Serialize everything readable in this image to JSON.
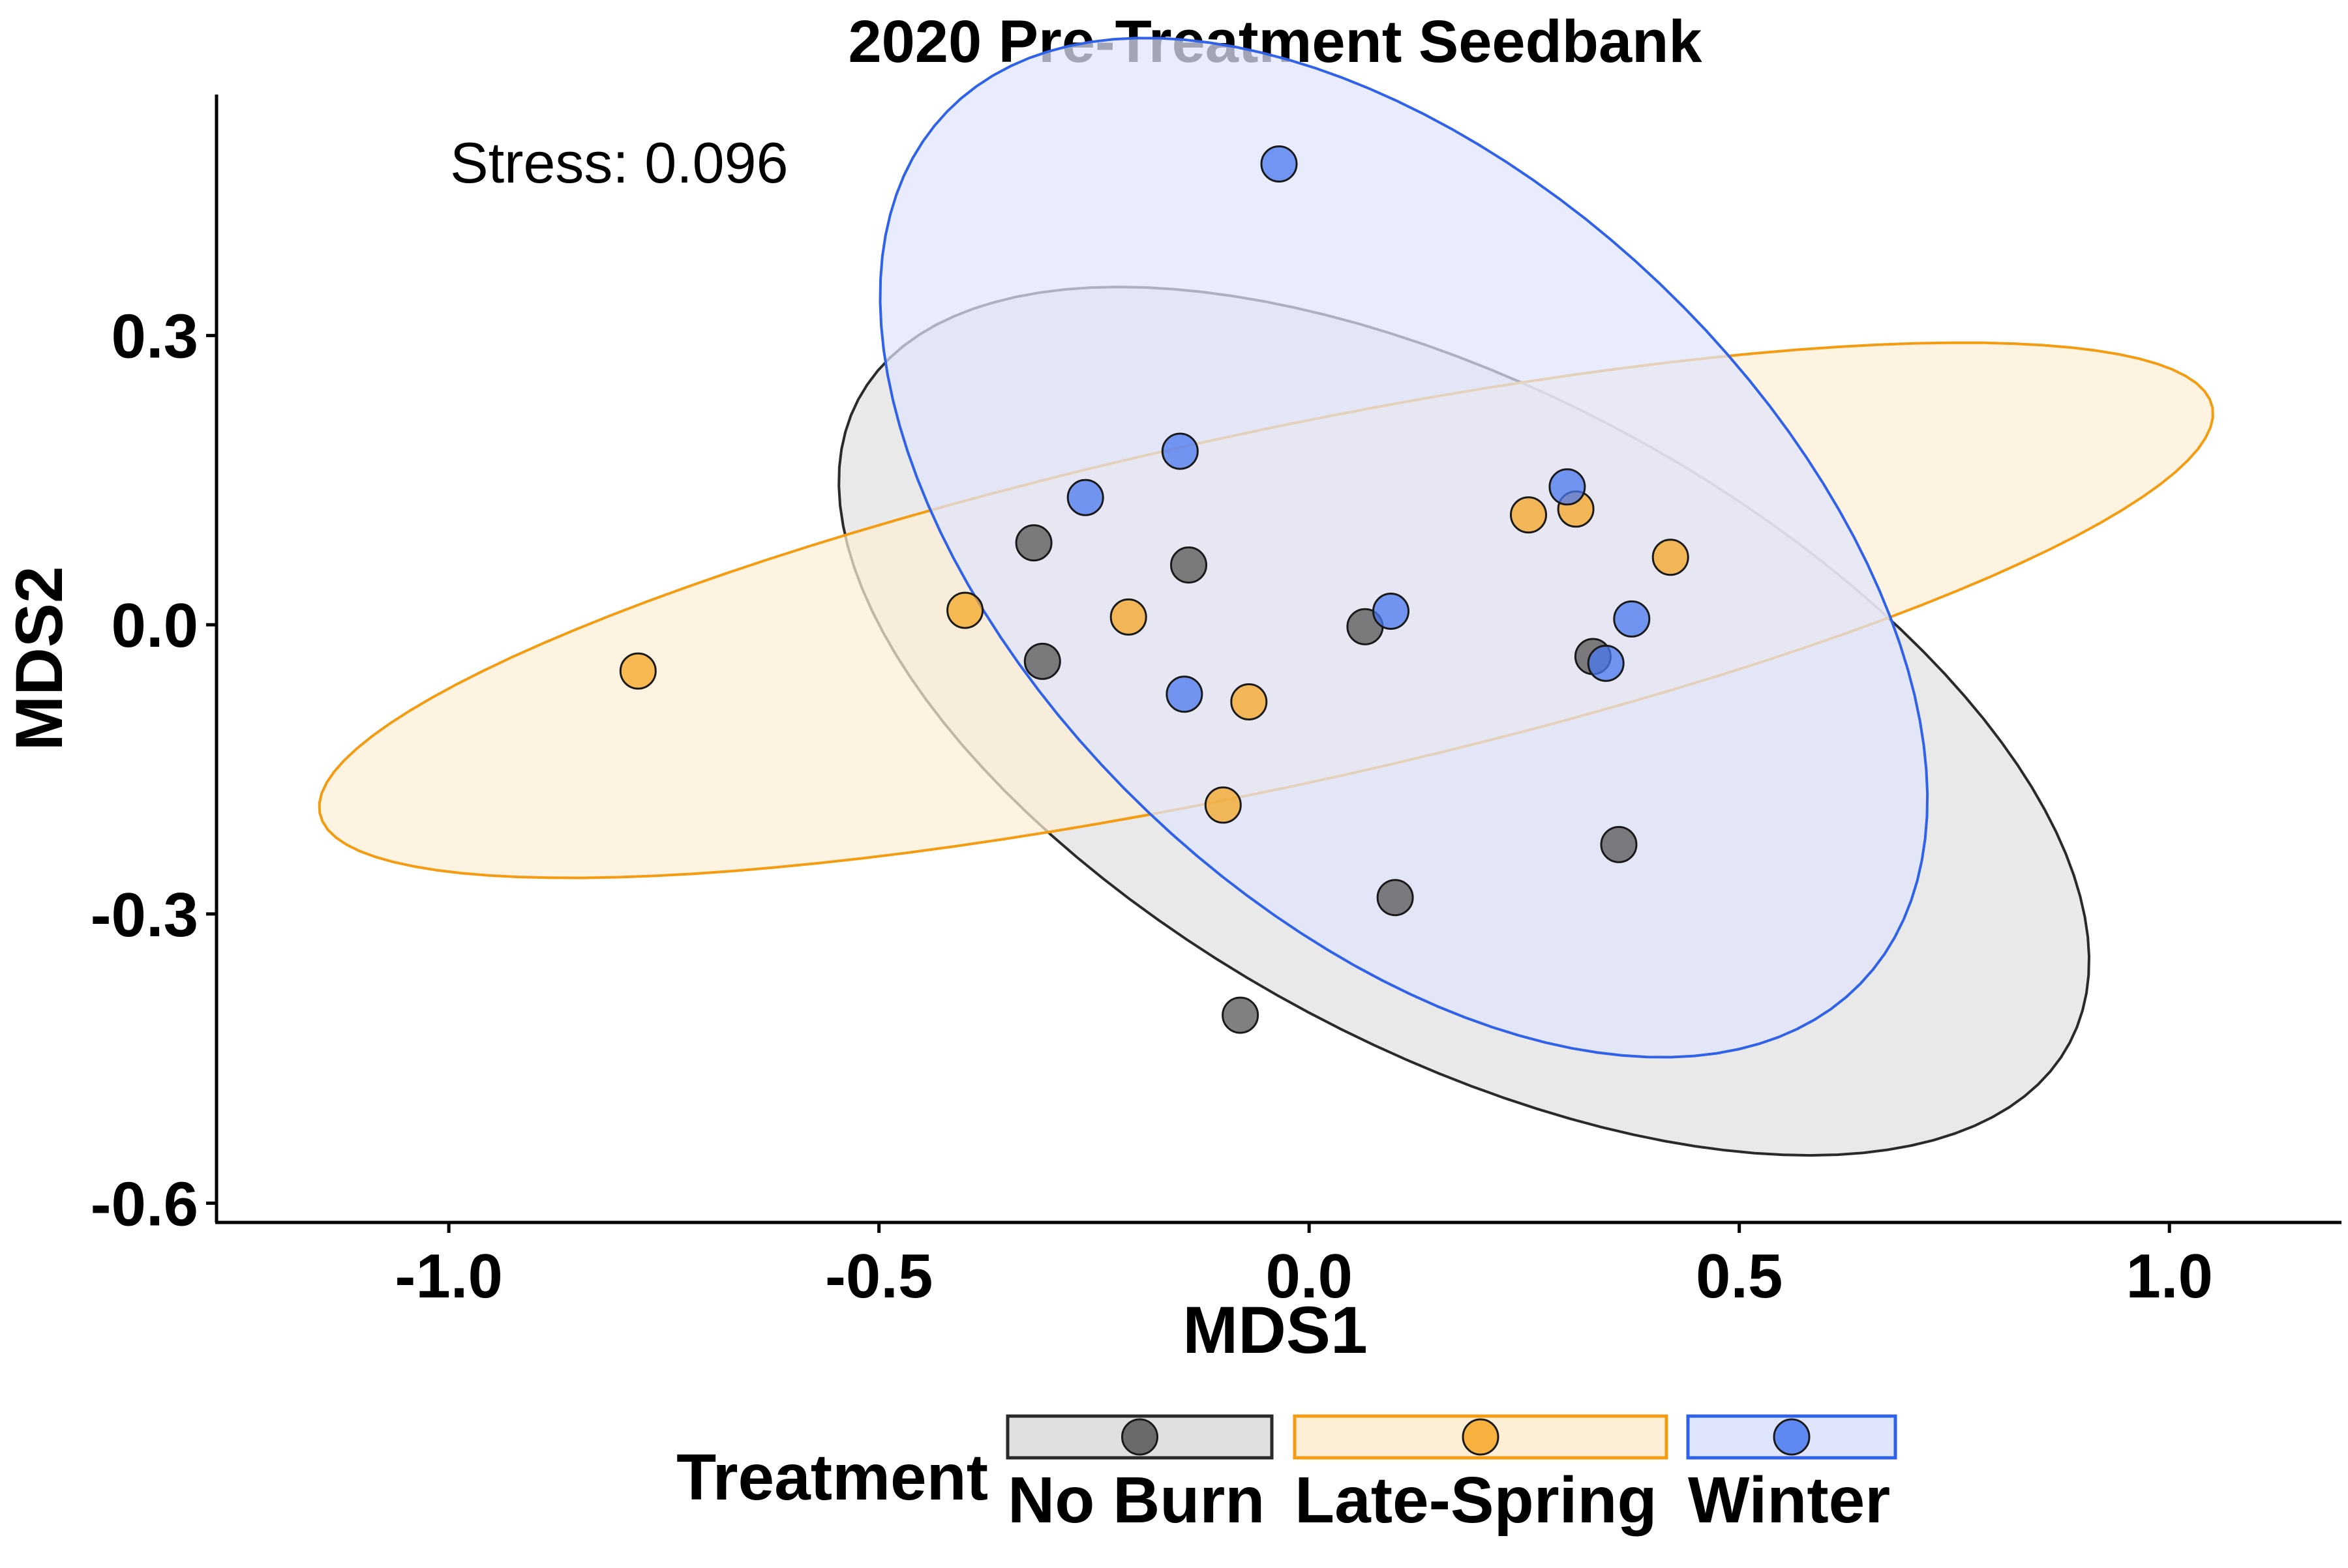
{
  "chart_data": {
    "type": "scatter",
    "title": "2020 Pre-Treatment Seedbank",
    "xlabel": "MDS1",
    "ylabel": "MDS2",
    "xlim": [
      -1.27,
      1.2
    ],
    "ylim": [
      -0.62,
      0.55
    ],
    "xticks": [
      -1.0,
      -0.5,
      0.0,
      0.5,
      1.0
    ],
    "xtick_labels": [
      "-1.0",
      "-0.5",
      "0.0",
      "0.5",
      "1.0"
    ],
    "yticks": [
      -0.6,
      -0.3,
      0.0,
      0.3
    ],
    "ytick_labels": [
      "-0.6",
      "-0.3",
      "0.0",
      "0.3"
    ],
    "grid": false,
    "annotation": "Stress: 0.096",
    "legend": {
      "title": "Treatment",
      "placement": "bottom",
      "entries": [
        "No Burn",
        "Late-Spring",
        "Winter"
      ]
    },
    "series": [
      {
        "name": "No Burn",
        "color": "#555555",
        "ellipse_fill": "#e0e0e0",
        "ellipse_stroke": "#2a2a2a",
        "ellipse": {
          "cx": 0.18,
          "cy": -0.1,
          "a": 0.78,
          "b": 0.35,
          "angle_deg": -24
        },
        "points": [
          {
            "x": -0.32,
            "y": 0.085
          },
          {
            "x": -0.31,
            "y": -0.038
          },
          {
            "x": -0.14,
            "y": 0.062
          },
          {
            "x": 0.065,
            "y": -0.002
          },
          {
            "x": 0.33,
            "y": -0.033
          },
          {
            "x": 0.36,
            "y": -0.228
          },
          {
            "x": 0.1,
            "y": -0.283
          },
          {
            "x": -0.08,
            "y": -0.405
          }
        ]
      },
      {
        "name": "Late-Spring",
        "color": "#f6a623",
        "ellipse_fill": "#fdeed6",
        "ellipse_stroke": "#f39c12",
        "ellipse": {
          "cx": -0.05,
          "cy": 0.015,
          "a": 1.12,
          "b": 0.185,
          "angle_deg": 10.8
        },
        "points": [
          {
            "x": -0.78,
            "y": -0.048
          },
          {
            "x": -0.4,
            "y": 0.015
          },
          {
            "x": -0.21,
            "y": 0.008
          },
          {
            "x": -0.07,
            "y": -0.08
          },
          {
            "x": -0.1,
            "y": -0.187
          },
          {
            "x": 0.255,
            "y": 0.114
          },
          {
            "x": 0.31,
            "y": 0.12
          },
          {
            "x": 0.42,
            "y": 0.07
          }
        ]
      },
      {
        "name": "Winter",
        "color": "#4a78f0",
        "ellipse_fill": "#dfe5fb",
        "ellipse_stroke": "#2f62e9",
        "ellipse": {
          "cx": 0.11,
          "cy": 0.08,
          "a": 0.7,
          "b": 0.4,
          "angle_deg": -37
        },
        "points": [
          {
            "x": -0.035,
            "y": 0.478
          },
          {
            "x": -0.15,
            "y": 0.18
          },
          {
            "x": -0.26,
            "y": 0.132
          },
          {
            "x": 0.3,
            "y": 0.143
          },
          {
            "x": 0.095,
            "y": 0.014
          },
          {
            "x": 0.375,
            "y": 0.006
          },
          {
            "x": 0.345,
            "y": -0.04
          },
          {
            "x": -0.145,
            "y": -0.072
          }
        ]
      }
    ]
  }
}
